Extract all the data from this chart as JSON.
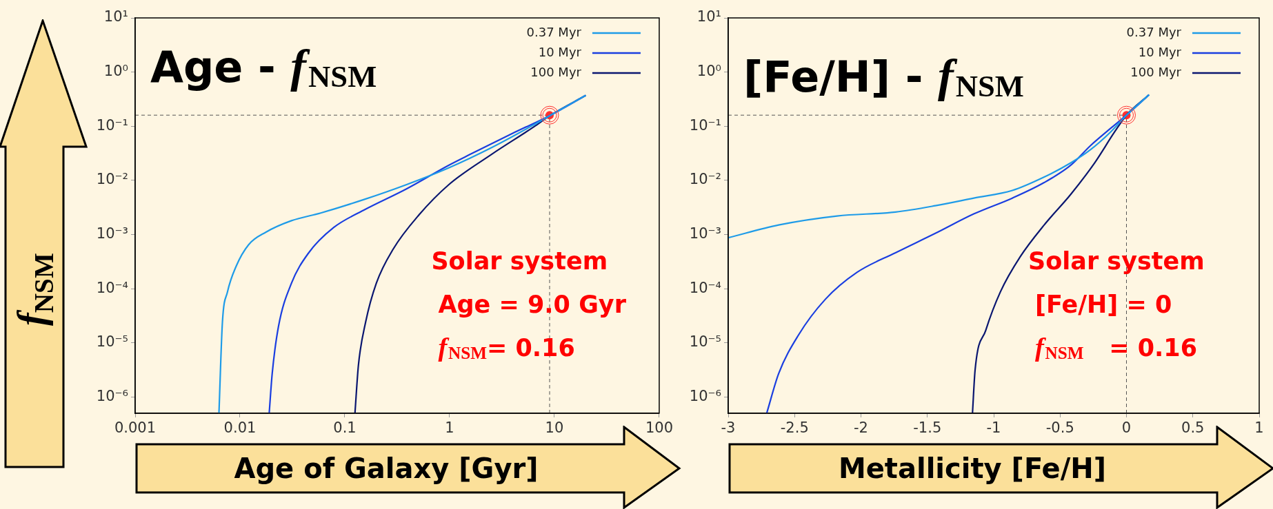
{
  "chart_data": [
    {
      "type": "line",
      "title": "Age - f$_{NSM}$",
      "xlabel": "Age of Galaxy [Gyr]",
      "ylabel": "f$_{NSM}$",
      "log": "xy",
      "legend": "top right",
      "grid": false,
      "xlim": [
        0.001,
        100
      ],
      "xticks": [
        0.001,
        0.01,
        0.1,
        1,
        10,
        100
      ],
      "ylim": [
        5e-07,
        10
      ],
      "yticks": [
        {
          "value": 1e-06,
          "label": "10⁻⁶"
        },
        {
          "value": 1e-05,
          "label": "10⁻⁵"
        },
        {
          "value": 0.0001,
          "label": "10⁻⁴"
        },
        {
          "value": 0.001,
          "label": "10⁻³"
        },
        {
          "value": 0.01,
          "label": "10⁻²"
        },
        {
          "value": 0.1,
          "label": "10⁻¹"
        },
        {
          "value": 1,
          "label": "10⁰"
        },
        {
          "value": 10,
          "label": "10¹"
        }
      ],
      "series": [
        {
          "name": "0.37 Myr",
          "color": "#1e9be8",
          "x": [
            0.0063,
            0.0068,
            0.0076,
            0.0092,
            0.0121,
            0.0176,
            0.031,
            0.059,
            0.151,
            0.385,
            0.98,
            2.5,
            6.4,
            9.2,
            19.9
          ],
          "values": [
            5e-07,
            2.4e-05,
            8.7e-05,
            0.00026,
            0.00065,
            0.0011,
            0.0018,
            0.0025,
            0.0044,
            0.0083,
            0.017,
            0.04,
            0.107,
            0.16,
            0.37
          ]
        },
        {
          "name": "10 Myr",
          "color": "#1a3ee0",
          "x": [
            0.019,
            0.0203,
            0.0233,
            0.031,
            0.0449,
            0.0785,
            0.151,
            0.385,
            0.98,
            1.56,
            4.0,
            9.2,
            19.9
          ],
          "values": [
            5e-07,
            2.7e-06,
            2e-05,
            0.000126,
            0.00045,
            0.00135,
            0.0028,
            0.0069,
            0.019,
            0.03,
            0.074,
            0.16,
            0.37
          ]
        },
        {
          "name": "100 Myr",
          "color": "#0a1670",
          "x": [
            0.125,
            0.135,
            0.158,
            0.2,
            0.29,
            0.51,
            0.98,
            2.5,
            6.4,
            9.2,
            19.9
          ],
          "values": [
            5e-07,
            3.9e-06,
            2.4e-05,
            0.000126,
            0.00054,
            0.0023,
            0.0083,
            0.03,
            0.098,
            0.16,
            0.37
          ]
        },
        {
          "type": "scatter",
          "marker": "circle",
          "color": "#ff3030",
          "x": [
            9
          ],
          "values": [
            0.16
          ]
        }
      ],
      "ref_lines": [
        {
          "axis": "y",
          "value": 0.16,
          "color": "#555555",
          "line_style": "dashed"
        },
        {
          "axis": "x",
          "value": 9,
          "color": "#555555",
          "line_style": "dashed"
        }
      ],
      "annotations": [
        "Solar system",
        "Age = 9.0 Gyr",
        "f$_{NSM}$= 0.16"
      ]
    },
    {
      "type": "line",
      "title": "[Fe/H] - f$_{NSM}$",
      "xlabel": "Metallicity [Fe/H]",
      "log": "y",
      "legend": "top right",
      "grid": false,
      "xlim": [
        -3,
        1
      ],
      "xticks": [
        -3,
        -2.5,
        -2,
        -1.5,
        -1,
        -0.5,
        0,
        0.5,
        1
      ],
      "ylim": [
        5e-07,
        10
      ],
      "yticks": [
        {
          "value": 1e-06,
          "label": "10⁻⁶"
        },
        {
          "value": 1e-05,
          "label": "10⁻⁵"
        },
        {
          "value": 0.0001,
          "label": "10⁻⁴"
        },
        {
          "value": 0.001,
          "label": "10⁻³"
        },
        {
          "value": 0.01,
          "label": "10⁻²"
        },
        {
          "value": 0.1,
          "label": "10⁻¹"
        },
        {
          "value": 1,
          "label": "10⁰"
        },
        {
          "value": 10,
          "label": "10¹"
        }
      ],
      "series": [
        {
          "name": "0.37 Myr",
          "color": "#1e9be8",
          "x": [
            -3,
            -2.62,
            -2.18,
            -1.74,
            -1.44,
            -1.15,
            -0.86,
            -0.62,
            -0.42,
            -0.27,
            -0.12,
            0,
            0.17
          ],
          "values": [
            0.00087,
            0.0015,
            0.0022,
            0.0026,
            0.0034,
            0.0047,
            0.0065,
            0.0115,
            0.021,
            0.037,
            0.078,
            0.16,
            0.38
          ]
        },
        {
          "name": "10 Myr",
          "color": "#1a3ee0",
          "x": [
            -2.71,
            -2.62,
            -2.47,
            -2.27,
            -2.03,
            -1.74,
            -1.44,
            -1.15,
            -0.86,
            -0.62,
            -0.42,
            -0.27,
            -0.12,
            0,
            0.17
          ],
          "values": [
            5e-07,
            2.7e-06,
            1.4e-05,
            6.3e-05,
            0.0002,
            0.00046,
            0.00105,
            0.0024,
            0.0047,
            0.0091,
            0.019,
            0.044,
            0.091,
            0.16,
            0.38
          ]
        },
        {
          "name": "100 Myr",
          "color": "#0a1670",
          "x": [
            -1.16,
            -1.14,
            -1.06,
            -0.95,
            -0.8,
            -0.62,
            -0.42,
            -0.24,
            -0.09,
            0,
            0.17
          ],
          "values": [
            5e-07,
            3.2e-06,
            1.7e-05,
            8.7e-05,
            0.00039,
            0.0015,
            0.0055,
            0.021,
            0.078,
            0.16,
            0.38
          ]
        },
        {
          "type": "scatter",
          "marker": "circle",
          "color": "#ff3030",
          "x": [
            0
          ],
          "values": [
            0.16
          ]
        }
      ],
      "ref_lines": [
        {
          "axis": "y",
          "value": 0.16,
          "color": "#555555",
          "line_style": "dashed"
        },
        {
          "axis": "x",
          "value": 0,
          "color": "#555555",
          "line_style": "dashed"
        }
      ],
      "annotations": [
        "Solar system",
        "[Fe/H] = 0",
        "f$_{NSM}$   = 0.16"
      ]
    }
  ]
}
